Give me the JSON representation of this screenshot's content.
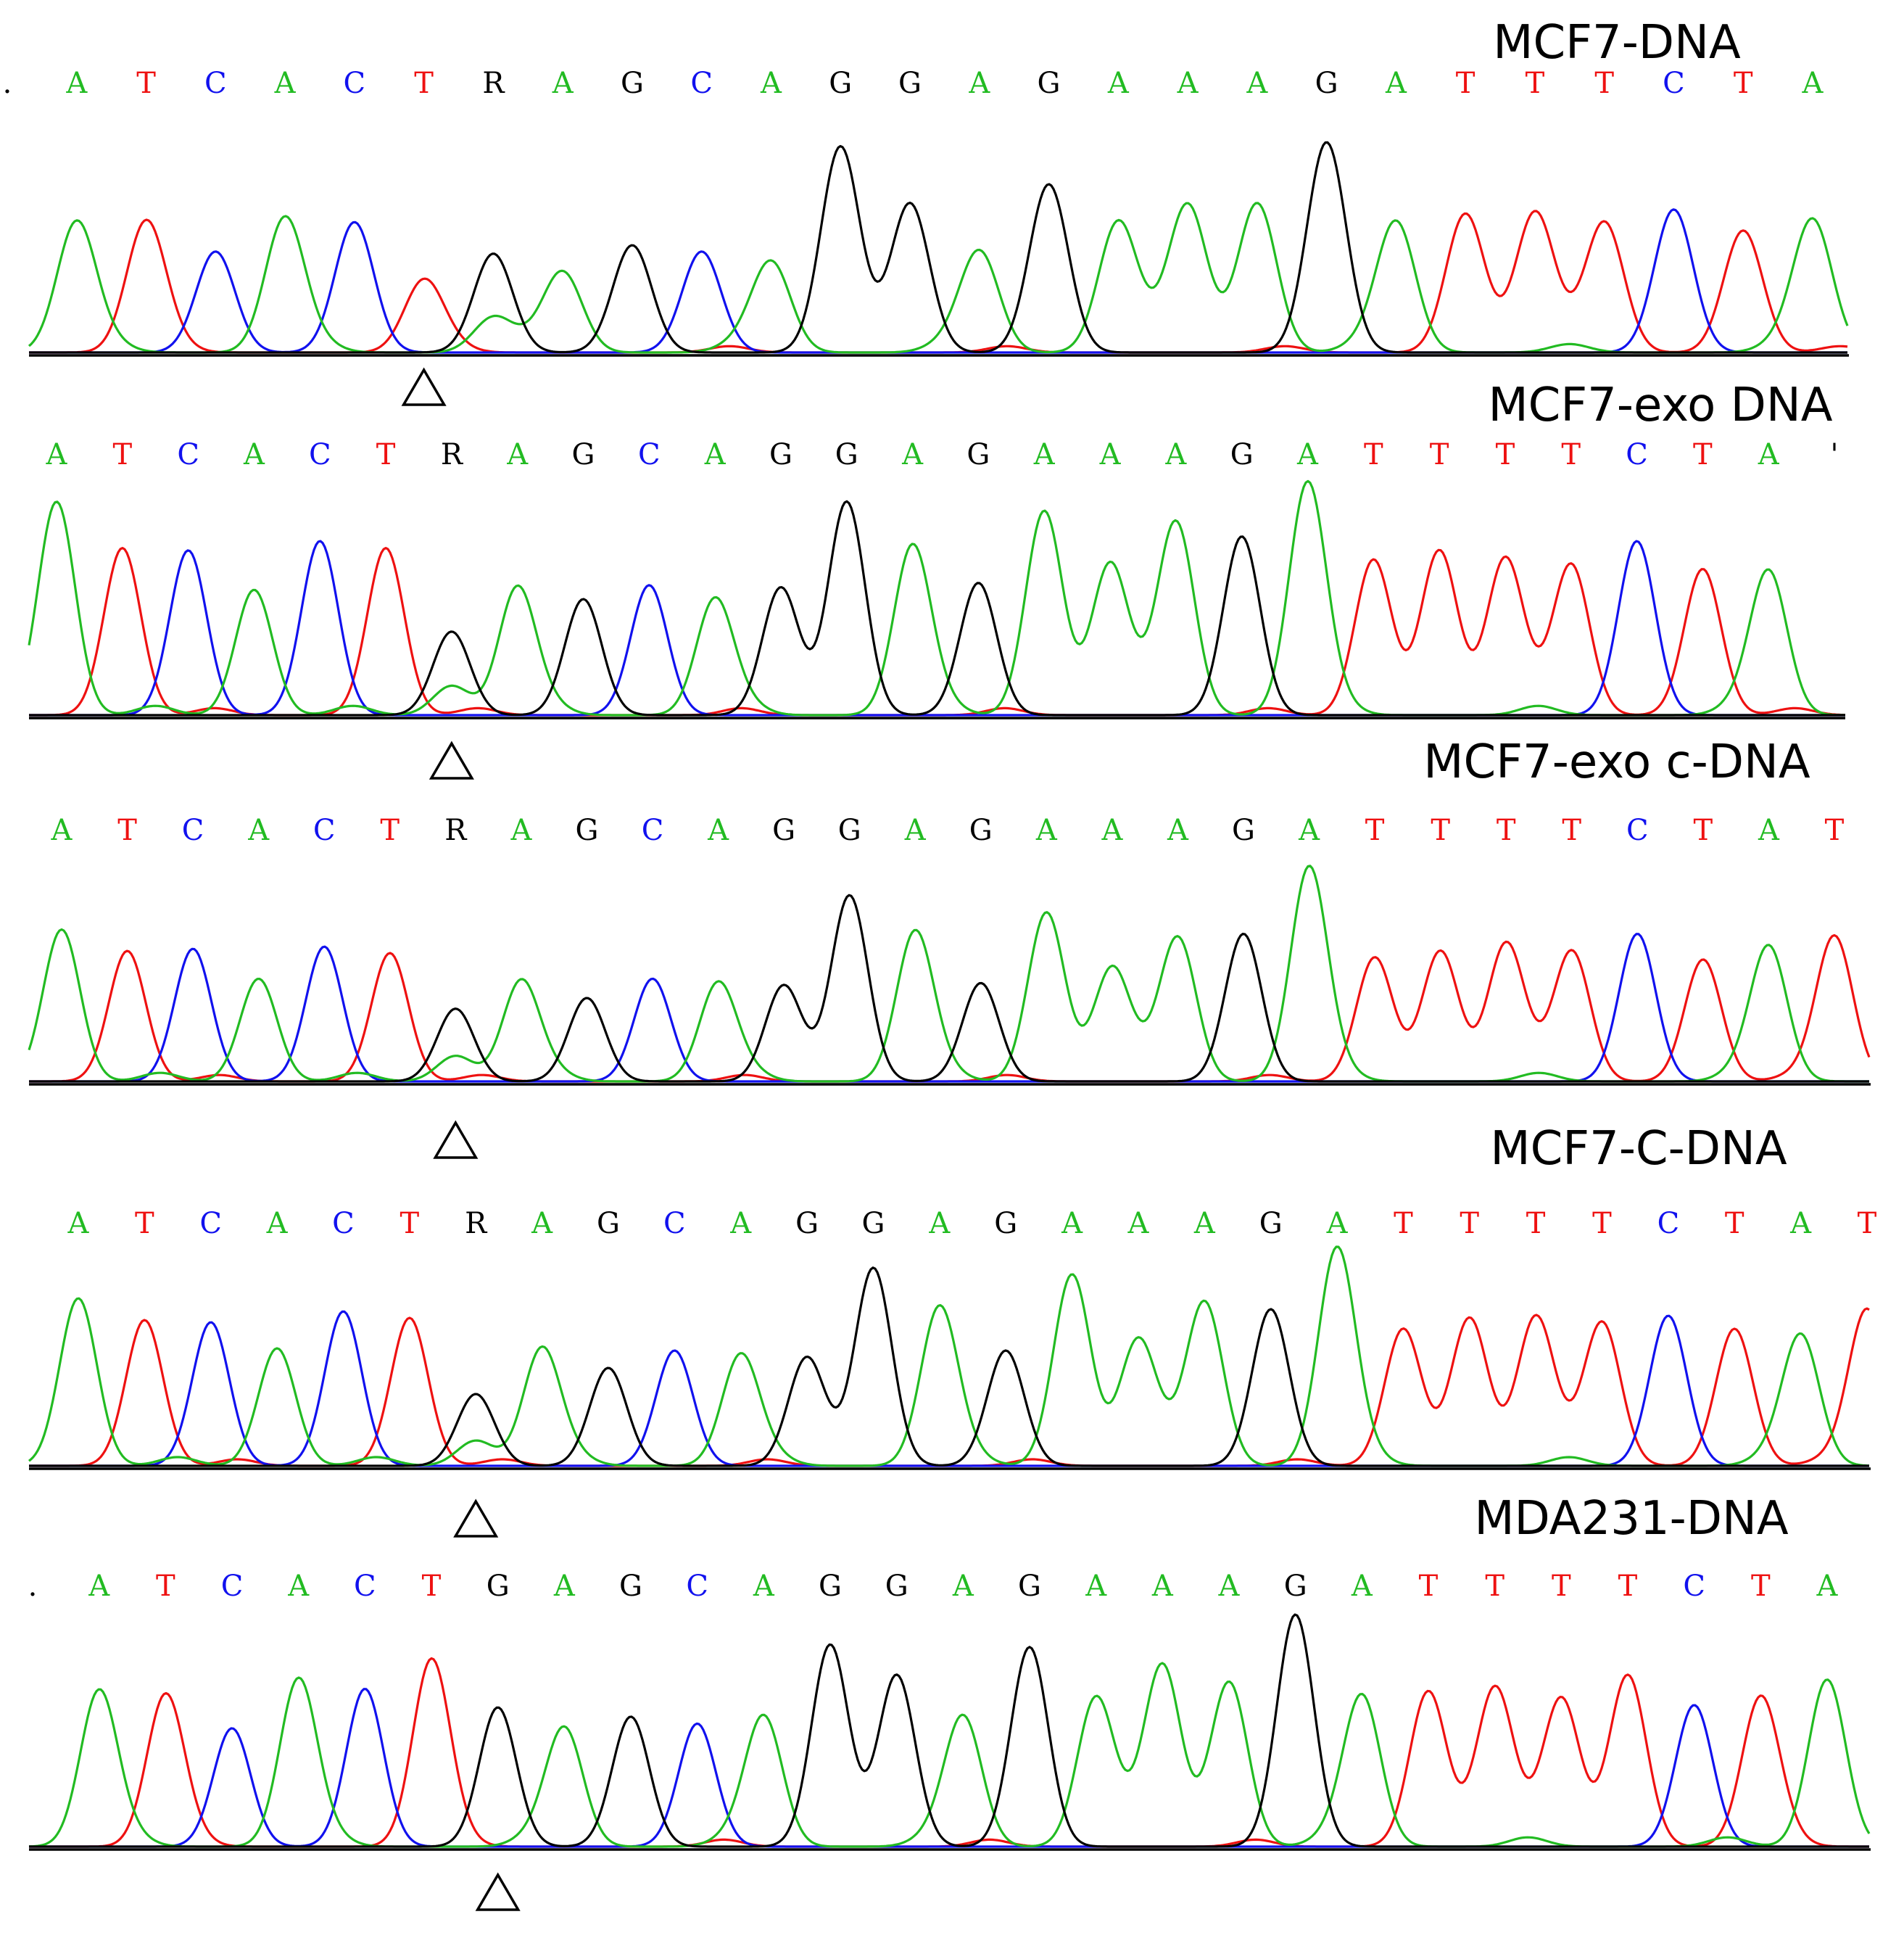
{
  "colors": {
    "A": "#22bb22",
    "C": "#1111ee",
    "G": "#000000",
    "T": "#ee1111",
    "R": "#000000"
  },
  "chart_data": [
    {
      "type": "chromatogram",
      "title": "MCF7-DNA",
      "sequence": [
        ".",
        "A",
        "T",
        "C",
        "A",
        "C",
        "T",
        "R",
        "A",
        "G",
        "C",
        "A",
        "G",
        "G",
        "A",
        "G",
        "A",
        "A",
        "A",
        "G",
        "A",
        "T",
        "T",
        "T",
        "C",
        "T",
        "A"
      ],
      "peak_heights": [
        0.72,
        0.62,
        0.62,
        0.48,
        0.64,
        0.62,
        0.34,
        0.47,
        0.38,
        0.51,
        0.48,
        0.43,
        0.98,
        0.71,
        0.48,
        0.8,
        0.62,
        0.7,
        0.71,
        1.0,
        0.62,
        0.66,
        0.66,
        0.62,
        0.68,
        0.58,
        0.63
      ],
      "marker_index": 6
    },
    {
      "type": "chromatogram",
      "title": "MCF7-exo DNA",
      "sequence": [
        "A",
        "T",
        "C",
        "A",
        "C",
        "T",
        "R",
        "A",
        "G",
        "C",
        "A",
        "G",
        "G",
        "A",
        "G",
        "A",
        "A",
        "A",
        "G",
        "A",
        "T",
        "T",
        "T",
        "T",
        "C",
        "T",
        "A",
        "'"
      ],
      "peak_heights": [
        0.92,
        0.72,
        0.71,
        0.54,
        0.75,
        0.72,
        0.36,
        0.55,
        0.5,
        0.56,
        0.5,
        0.55,
        0.92,
        0.73,
        0.57,
        0.88,
        0.65,
        0.83,
        0.77,
        1.0,
        0.67,
        0.71,
        0.67,
        0.65,
        0.75,
        0.63,
        0.62,
        0.7
      ],
      "marker_index": 6
    },
    {
      "type": "chromatogram",
      "title": "MCF7-exo c-DNA",
      "sequence": [
        "A",
        "T",
        "C",
        "A",
        "C",
        "T",
        "R",
        "A",
        "G",
        "C",
        "A",
        "G",
        "G",
        "A",
        "G",
        "A",
        "A",
        "A",
        "G",
        "A",
        "T",
        "T",
        "T",
        "T",
        "C",
        "T",
        "A",
        "T"
      ],
      "peak_heights": [
        0.71,
        0.61,
        0.62,
        0.48,
        0.63,
        0.6,
        0.34,
        0.47,
        0.39,
        0.48,
        0.46,
        0.45,
        0.87,
        0.7,
        0.46,
        0.79,
        0.53,
        0.67,
        0.69,
        1.0,
        0.58,
        0.61,
        0.64,
        0.61,
        0.69,
        0.57,
        0.63,
        0.68
      ],
      "marker_index": 6
    },
    {
      "type": "chromatogram",
      "title": "MCF7-C-DNA",
      "sequence": [
        "A",
        "T",
        "C",
        "A",
        "C",
        "T",
        "R",
        "A",
        "G",
        "C",
        "A",
        "G",
        "G",
        "A",
        "G",
        "A",
        "A",
        "A",
        "G",
        "A",
        "T",
        "T",
        "T",
        "T",
        "C",
        "T",
        "A",
        "T"
      ],
      "peak_heights": [
        0.77,
        0.67,
        0.66,
        0.54,
        0.71,
        0.68,
        0.33,
        0.54,
        0.45,
        0.53,
        0.51,
        0.5,
        0.91,
        0.73,
        0.53,
        0.88,
        0.58,
        0.75,
        0.72,
        1.0,
        0.63,
        0.68,
        0.68,
        0.66,
        0.69,
        0.63,
        0.6,
        0.72
      ],
      "marker_index": 6
    },
    {
      "type": "chromatogram",
      "title": "MDA231-DNA",
      "sequence": [
        ".",
        "A",
        "T",
        "C",
        "A",
        "C",
        "T",
        "G",
        "A",
        "G",
        "C",
        "A",
        "G",
        "G",
        "A",
        "G",
        "A",
        "A",
        "A",
        "G",
        "A",
        "T",
        "T",
        "T",
        "T",
        "C",
        "T",
        "A"
      ],
      "peak_heights": [
        0.79,
        0.67,
        0.65,
        0.51,
        0.72,
        0.68,
        0.8,
        0.6,
        0.51,
        0.56,
        0.53,
        0.56,
        0.87,
        0.74,
        0.56,
        0.86,
        0.64,
        0.78,
        0.71,
        1.0,
        0.65,
        0.67,
        0.68,
        0.64,
        0.74,
        0.61,
        0.64,
        0.72
      ],
      "marker_index": 7
    }
  ]
}
